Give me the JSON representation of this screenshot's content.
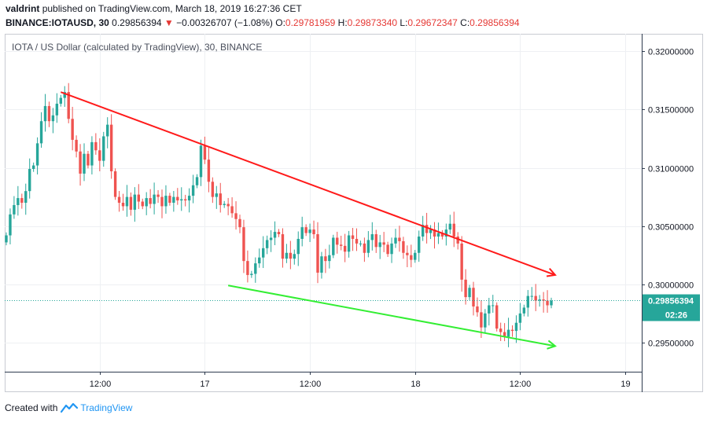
{
  "header": {
    "user": "valdrint",
    "published_text": "published on TradingView.com, March 18, 2019 16:27:36 CET",
    "symbol": "BINANCE:IOTAUSD, 30",
    "price": "0.29856394",
    "change_icon": "triangle-down-icon",
    "change": "−0.00326707 (−1.08%)",
    "o_label": "O:",
    "o_value": "0.29781959",
    "h_label": "H:",
    "h_value": "0.29873340",
    "l_label": "L:",
    "l_value": "0.29672347",
    "c_label": "C:",
    "c_value": "0.29856394"
  },
  "footer": {
    "created_with": "Created with",
    "brand": "TradingView",
    "logo_icon": "tradingview-logo-icon"
  },
  "colors": {
    "up": "#26a69a",
    "down": "#ef5350",
    "resistance": "#ff1a1a",
    "support": "#33ee33",
    "axis": "#2e3b4e",
    "price_tag": "#26a69a"
  },
  "chart_data": {
    "type": "candlestick",
    "title": "IOTA / US Dollar (calculated by TradingView), 30, BINANCE",
    "ylim": [
      0.2925,
      0.3215
    ],
    "y_ticks": [
      "0.32000000",
      "0.31500000",
      "0.31000000",
      "0.30500000",
      "0.30000000",
      "0.29500000"
    ],
    "y_tick_values": [
      0.32,
      0.315,
      0.31,
      0.305,
      0.3,
      0.295
    ],
    "x_ticks": [
      "12:00",
      "17",
      "12:00",
      "18",
      "12:00",
      "19"
    ],
    "x_tick_index": [
      24,
      51,
      78,
      105,
      132,
      159
    ],
    "candle_count_visible": 141,
    "grid": true,
    "last_price_label": "0.29856394",
    "countdown_label": "02:26",
    "closes": [
      0.3042,
      0.306,
      0.3068,
      0.3074,
      0.307,
      0.308,
      0.3099,
      0.3102,
      0.3121,
      0.314,
      0.3153,
      0.314,
      0.3145,
      0.3155,
      0.316,
      0.3165,
      0.3142,
      0.3124,
      0.3114,
      0.3095,
      0.3112,
      0.3102,
      0.3122,
      0.3115,
      0.3106,
      0.3127,
      0.3137,
      0.3097,
      0.3075,
      0.307,
      0.3067,
      0.3075,
      0.3064,
      0.3077,
      0.3071,
      0.3067,
      0.3074,
      0.3069,
      0.3077,
      0.3075,
      0.3067,
      0.3076,
      0.307,
      0.3075,
      0.3072,
      0.3073,
      0.3072,
      0.3076,
      0.3085,
      0.3092,
      0.3119,
      0.3107,
      0.3088,
      0.3075,
      0.3078,
      0.3068,
      0.3069,
      0.3067,
      0.3061,
      0.3056,
      0.3049,
      0.302,
      0.3008,
      0.3009,
      0.3018,
      0.3023,
      0.3031,
      0.3038,
      0.304,
      0.3045,
      0.3043,
      0.3022,
      0.3027,
      0.3022,
      0.3026,
      0.3039,
      0.3049,
      0.3044,
      0.3047,
      0.3043,
      0.301,
      0.3024,
      0.302,
      0.3025,
      0.304,
      0.3034,
      0.3033,
      0.3028,
      0.3042,
      0.3039,
      0.3035,
      0.3035,
      0.3027,
      0.3038,
      0.3043,
      0.3032,
      0.3036,
      0.3034,
      0.3026,
      0.3035,
      0.304,
      0.3037,
      0.3027,
      0.3025,
      0.3021,
      0.3027,
      0.3041,
      0.3051,
      0.3044,
      0.3047,
      0.3041,
      0.3044,
      0.3041,
      0.3047,
      0.3052,
      0.3041,
      0.3035,
      0.3004,
      0.2989,
      0.2997,
      0.2981,
      0.2976,
      0.2963,
      0.2975,
      0.2982,
      0.2982,
      0.2962,
      0.2959,
      0.2955,
      0.2961,
      0.296,
      0.2967,
      0.2975,
      0.298,
      0.299,
      0.299,
      0.2986,
      0.2987,
      0.2986,
      0.2982,
      0.2986
    ]
  },
  "annotations": {
    "resistance_line": {
      "from": [
        14,
        0.3165
      ],
      "to": [
        141,
        0.3008
      ]
    },
    "support_line": {
      "from": [
        57,
        0.2999
      ],
      "to": [
        141,
        0.2947
      ]
    }
  }
}
